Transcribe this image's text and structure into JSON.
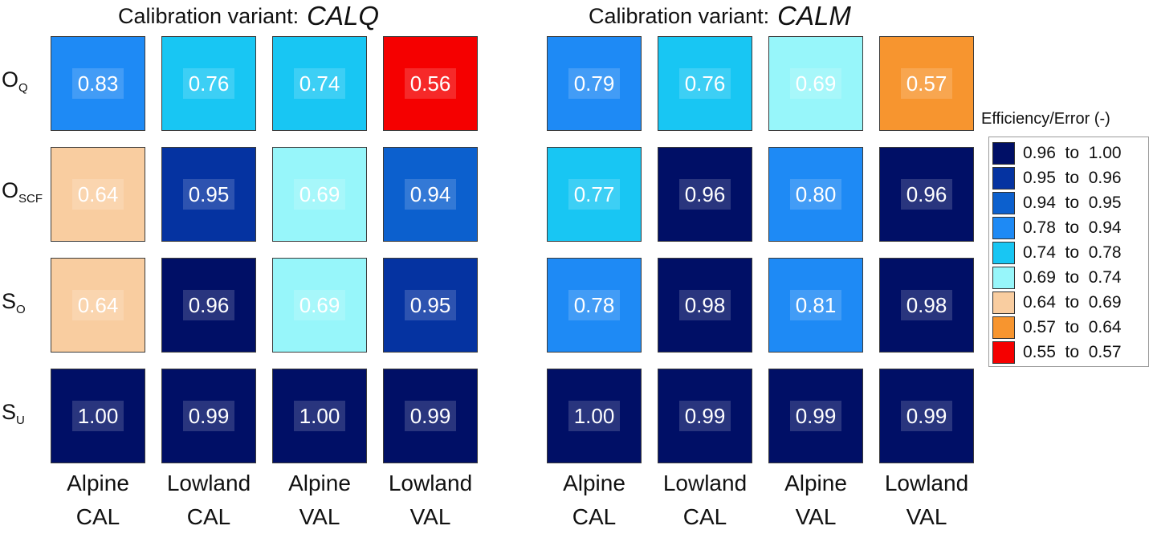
{
  "chart_data": {
    "type": "heatmap",
    "panels": [
      {
        "title_prefix": "Calibration variant:",
        "title_variant": "CALQ",
        "columns": [
          {
            "line1": "Alpine",
            "line2": "CAL"
          },
          {
            "line1": "Lowland",
            "line2": "CAL"
          },
          {
            "line1": "Alpine",
            "line2": "VAL"
          },
          {
            "line1": "Lowland",
            "line2": "VAL"
          }
        ],
        "rows": [
          {
            "label": "O",
            "sub": "Q",
            "values": [
              "0.83",
              "0.76",
              "0.74",
              "0.56"
            ]
          },
          {
            "label": "O",
            "sub": "SCF",
            "values": [
              "0.64",
              "0.95",
              "0.69",
              "0.94"
            ]
          },
          {
            "label": "S",
            "sub": "O",
            "values": [
              "0.64",
              "0.96",
              "0.69",
              "0.95"
            ]
          },
          {
            "label": "S",
            "sub": "U",
            "values": [
              "1.00",
              "0.99",
              "1.00",
              "0.99"
            ]
          }
        ]
      },
      {
        "title_prefix": "Calibration variant:",
        "title_variant": "CALM",
        "columns": [
          {
            "line1": "Alpine",
            "line2": "CAL"
          },
          {
            "line1": "Lowland",
            "line2": "CAL"
          },
          {
            "line1": "Alpine",
            "line2": "VAL"
          },
          {
            "line1": "Lowland",
            "line2": "VAL"
          }
        ],
        "rows": [
          {
            "label": "O",
            "sub": "Q",
            "values": [
              "0.79",
              "0.76",
              "0.69",
              "0.57"
            ]
          },
          {
            "label": "O",
            "sub": "SCF",
            "values": [
              "0.77",
              "0.96",
              "0.80",
              "0.96"
            ]
          },
          {
            "label": "S",
            "sub": "O",
            "values": [
              "0.78",
              "0.98",
              "0.81",
              "0.98"
            ]
          },
          {
            "label": "S",
            "sub": "U",
            "values": [
              "1.00",
              "0.99",
              "0.99",
              "0.99"
            ]
          }
        ]
      }
    ],
    "legend": {
      "title": "Efficiency/Error (-)",
      "bins": [
        {
          "label": "0.96  to  1.00",
          "min": 0.96,
          "max": 1.0,
          "color": "#000F66"
        },
        {
          "label": "0.95  to  0.96",
          "min": 0.95,
          "max": 0.96,
          "color": "#0533A1"
        },
        {
          "label": "0.94  to  0.95",
          "min": 0.94,
          "max": 0.95,
          "color": "#0C60CE"
        },
        {
          "label": "0.78  to  0.94",
          "min": 0.78,
          "max": 0.94,
          "color": "#1E8AF5"
        },
        {
          "label": "0.74  to  0.78",
          "min": 0.74,
          "max": 0.78,
          "color": "#18C6F3"
        },
        {
          "label": "0.69  to  0.74",
          "min": 0.69,
          "max": 0.74,
          "color": "#97F6FA"
        },
        {
          "label": "0.64  to  0.69",
          "min": 0.64,
          "max": 0.69,
          "color": "#F9CDA0"
        },
        {
          "label": "0.57  to  0.64",
          "min": 0.57,
          "max": 0.64,
          "color": "#F7952F"
        },
        {
          "label": "0.55  to  0.57",
          "min": 0.55,
          "max": 0.57,
          "color": "#F50000"
        }
      ]
    }
  }
}
